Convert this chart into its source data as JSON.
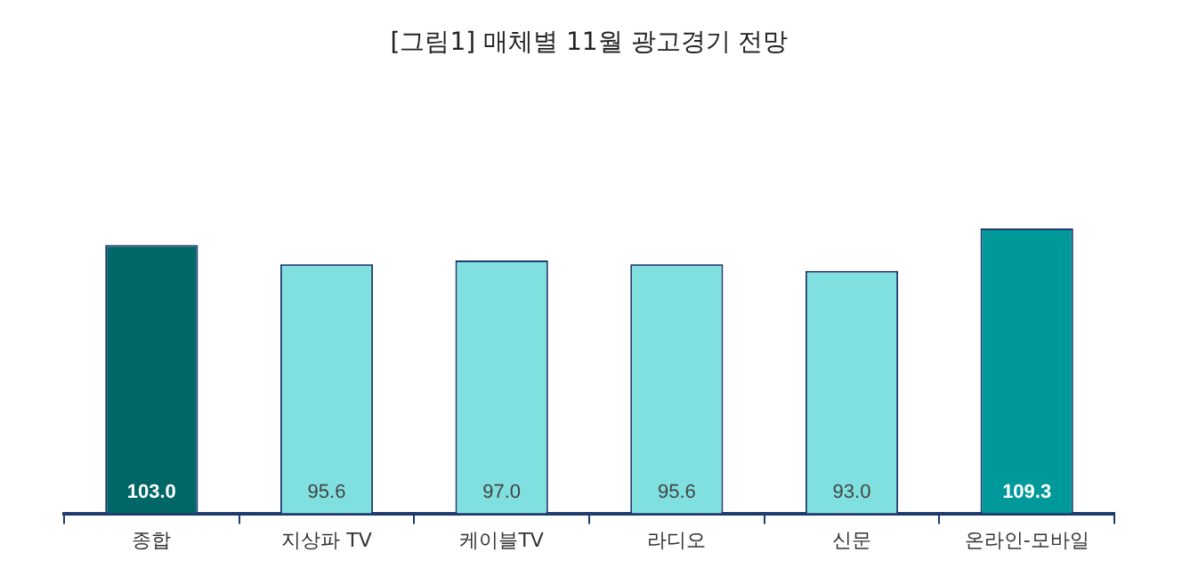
{
  "chart_data": {
    "type": "bar",
    "title": "[그림1] 매체별 11월 광고경기 전망",
    "categories": [
      "종합",
      "지상파 TV",
      "케이블TV",
      "라디오",
      "신문",
      "온라인-모바일"
    ],
    "values": [
      103.0,
      95.6,
      97.0,
      95.6,
      93.0,
      109.3
    ],
    "colors": [
      "#006666",
      "#80e0e0",
      "#80e0e0",
      "#80e0e0",
      "#80e0e0",
      "#009999"
    ],
    "value_labels": [
      "103.0",
      "95.6",
      "97.0",
      "95.6",
      "93.0",
      "109.3"
    ],
    "grid": false,
    "legend": false
  }
}
